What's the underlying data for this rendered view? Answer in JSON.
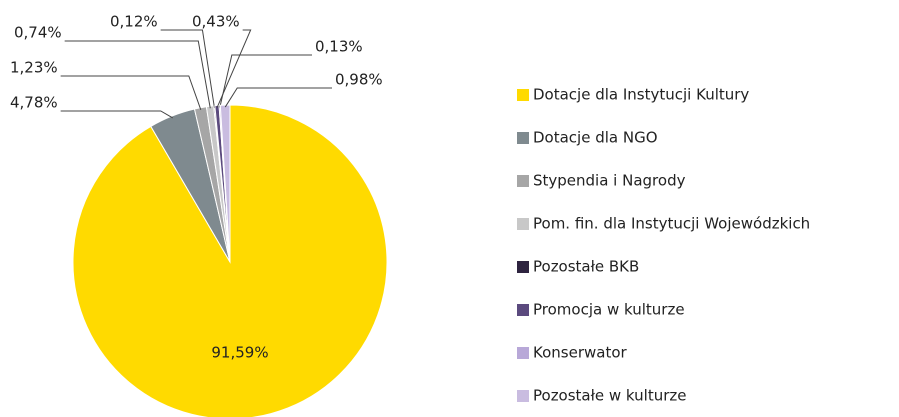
{
  "chart_data": {
    "type": "pie",
    "categories": [
      "Dotacje dla Instytucji Kultury",
      "Dotacje dla NGO",
      "Stypendia i Nagrody",
      "Pom. fin. dla Instytucji Wojewódzkich",
      "Pozostałe BKB",
      "Promocja w kulturze",
      "Konserwator",
      "Pozostałe w kulturze"
    ],
    "values": [
      91.59,
      4.78,
      1.23,
      0.74,
      0.12,
      0.43,
      0.13,
      0.98
    ],
    "value_labels": [
      "91,59%",
      "4,78%",
      "1,23%",
      "0,74%",
      "0,12%",
      "0,43%",
      "0,13%",
      "0,98%"
    ],
    "colors": [
      "#FFDA00",
      "#7F8A8F",
      "#A6A6A6",
      "#C8C8C8",
      "#2E2440",
      "#5B4A7E",
      "#B8A8D8",
      "#C9BCE0"
    ],
    "legend": "right"
  }
}
